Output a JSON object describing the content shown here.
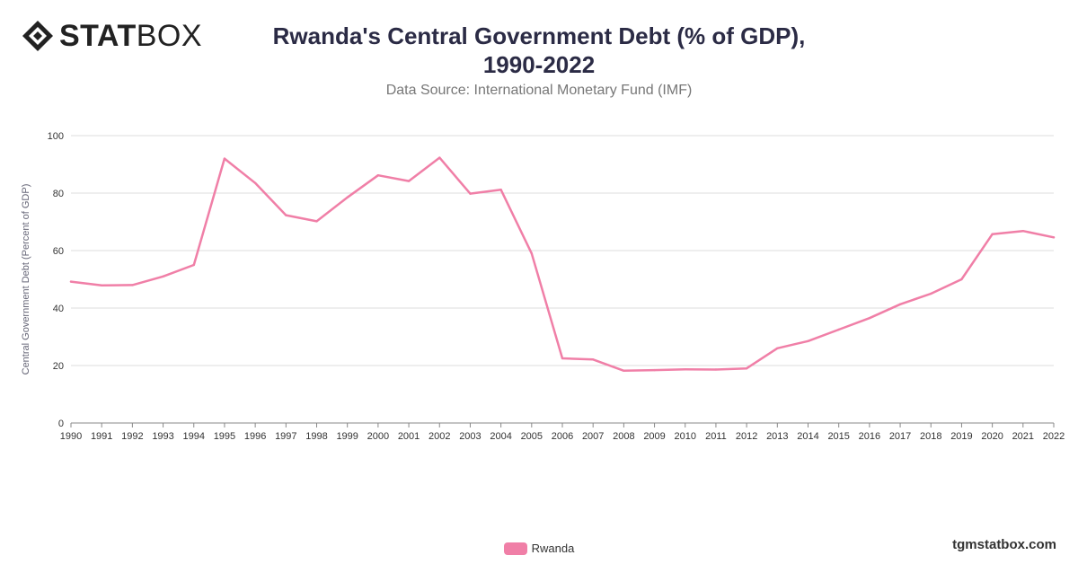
{
  "logo": {
    "bold": "STAT",
    "light": "BOX",
    "icon": "diamond-logo-icon"
  },
  "title_line1": "Rwanda's Central Government Debt (% of GDP),",
  "title_line2": "1990-2022",
  "subtitle": "Data Source: International Monetary Fund (IMF)",
  "watermark": "tgmstatbox.com",
  "colors": {
    "series": "#f07fa7",
    "grid": "#dddddd",
    "title": "#2b2b45"
  },
  "chart_data": {
    "type": "line",
    "title": "Rwanda's Central Government Debt (% of GDP), 1990-2022",
    "ylabel": "Central Government Debt (Percent of GDP)",
    "xlabel": "",
    "ylim": [
      0,
      100
    ],
    "yticks": [
      0,
      20,
      40,
      60,
      80,
      100
    ],
    "grid": true,
    "legend_position": "bottom-center",
    "x": [
      "1990",
      "1991",
      "1992",
      "1993",
      "1994",
      "1995",
      "1996",
      "1997",
      "1998",
      "1999",
      "2000",
      "2001",
      "2002",
      "2003",
      "2004",
      "2005",
      "2006",
      "2007",
      "2008",
      "2009",
      "2010",
      "2011",
      "2012",
      "2013",
      "2014",
      "2015",
      "2016",
      "2017",
      "2018",
      "2019",
      "2020",
      "2021",
      "2022"
    ],
    "series": [
      {
        "name": "Rwanda",
        "color": "#f07fa7",
        "values": [
          49.2,
          47.9,
          48.0,
          51.0,
          55.0,
          92.0,
          83.5,
          72.3,
          70.2,
          78.5,
          86.2,
          84.2,
          92.3,
          79.8,
          81.2,
          59.0,
          22.5,
          22.1,
          18.2,
          18.4,
          18.7,
          18.6,
          19.0,
          26.0,
          28.5,
          32.5,
          36.5,
          41.3,
          45.0,
          50.0,
          65.7,
          66.8,
          64.6
        ]
      }
    ]
  }
}
